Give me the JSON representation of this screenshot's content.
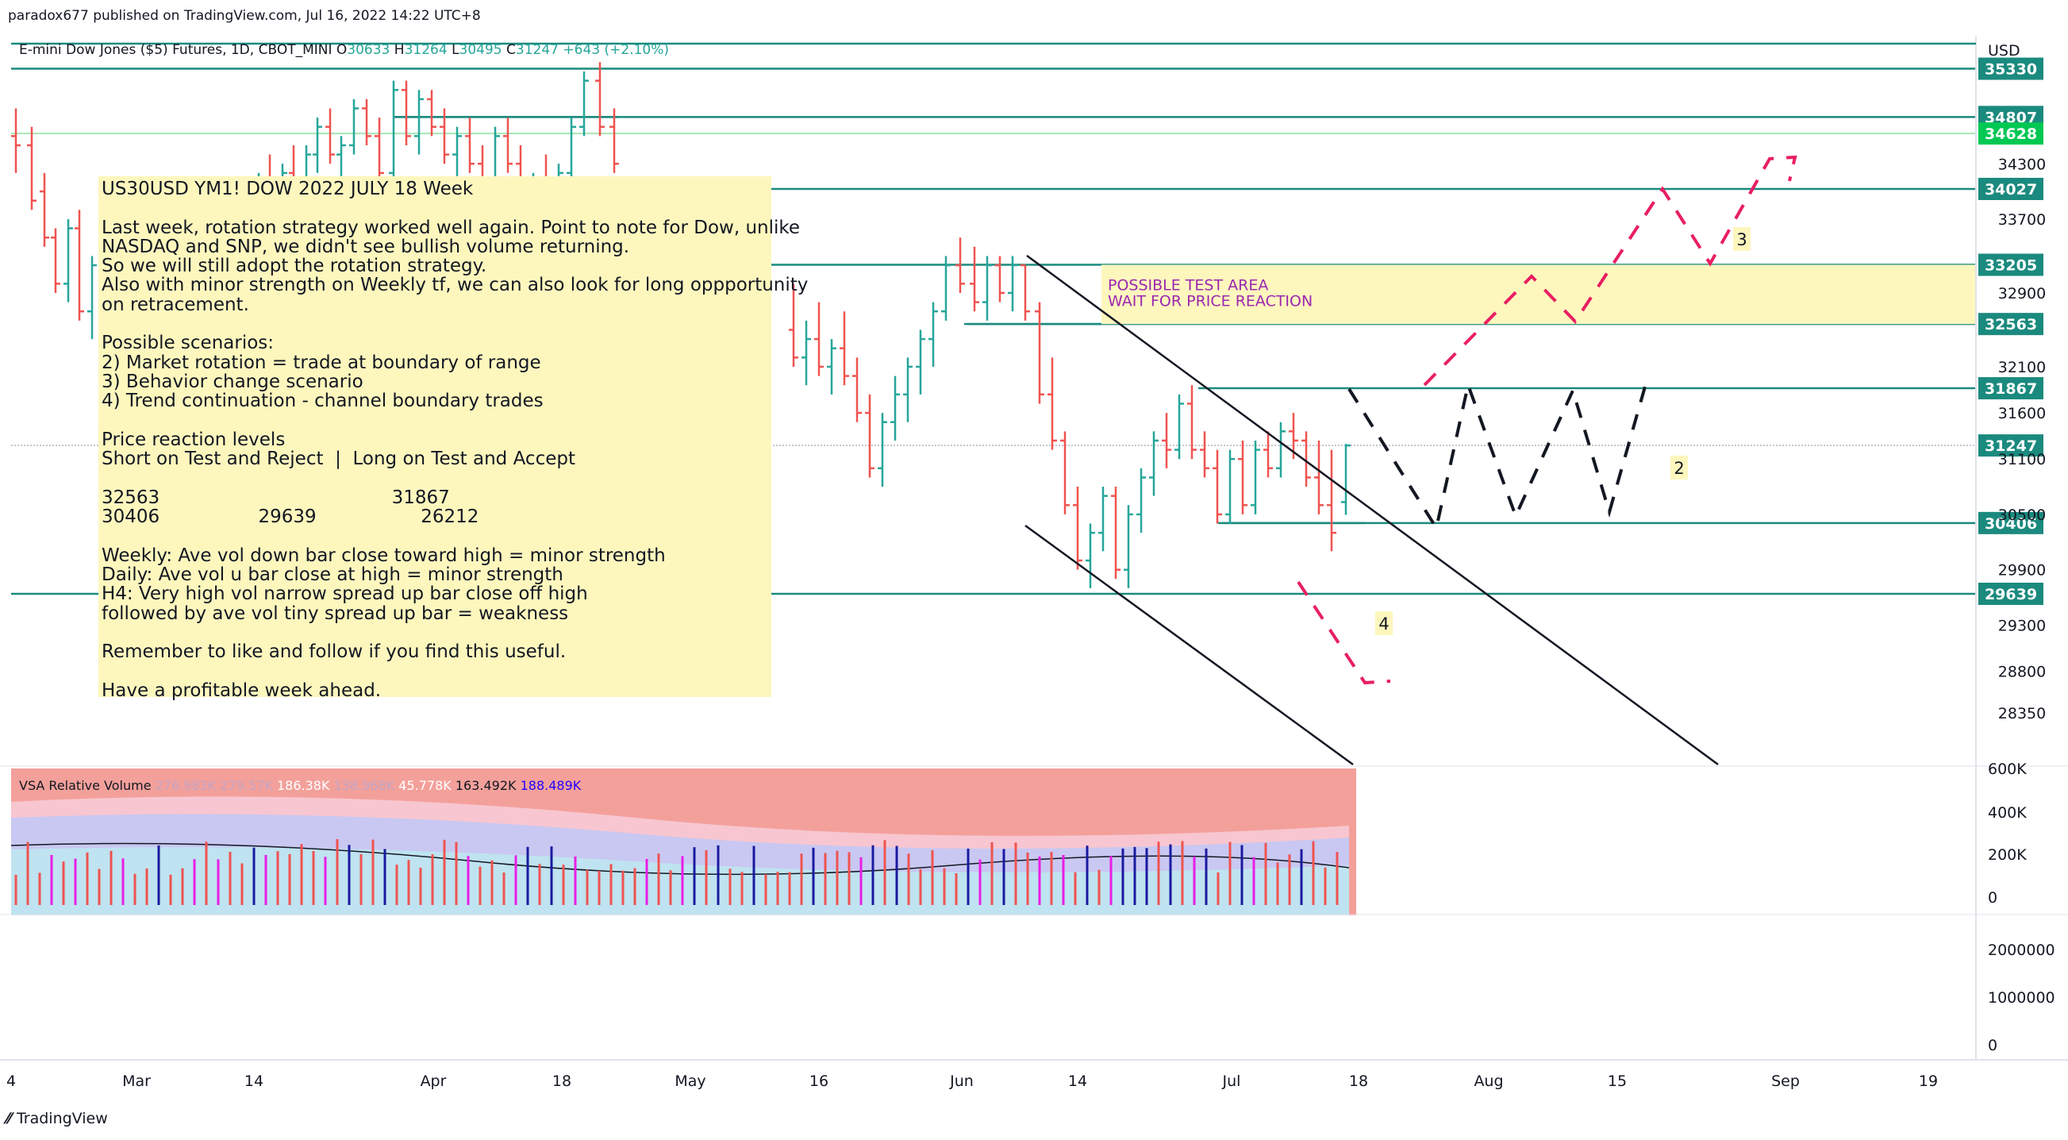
{
  "header": {
    "published": "paradox677 published on TradingView.com, Jul 16, 2022 14:22 UTC+8",
    "symbol": "E-mini Dow Jones ($5) Futures, 1D, CBOT_MINI",
    "o_label": "O",
    "o_value": "30633",
    "h_label": "H",
    "h_value": "31264",
    "l_label": "L",
    "l_value": "30495",
    "c_label": "C",
    "c_value": "31247",
    "change": "+643 (+2.10%)"
  },
  "currency": "USD",
  "note": {
    "lines": [
      "US30USD YM1! DOW 2022 JULY 18 Week",
      "",
      "Last week, rotation strategy worked well again. Point to note for Dow, unlike",
      "NASDAQ and SNP, we didn't see bullish volume returning.",
      "So we will still adopt the rotation strategy.",
      "Also with minor strength on Weekly tf, we can also look for long oppportunity",
      "on retracement.",
      "",
      "Possible scenarios:",
      "2) Market rotation = trade at boundary of range",
      "3) Behavior change scenario",
      "4) Trend continuation - channel boundary trades",
      "",
      "Price reaction levels",
      "Short on Test and Reject  |  Long on Test and Accept",
      "",
      "32563                                        31867",
      "30406                 29639                  26212",
      "",
      "Weekly: Ave vol down bar close toward high = minor strength",
      "Daily: Ave vol u bar close at high = minor strength",
      "H4: Very high vol narrow spread up bar close off high",
      "followed by ave vol tiny spread up bar = weakness",
      "",
      "Remember to like and follow if you find this useful.",
      "",
      "Have a profitable week ahead."
    ]
  },
  "test_area": {
    "line1": "POSSIBLE TEST AREA",
    "line2": "WAIT FOR PRICE REACTION"
  },
  "scenario_labels": [
    "2",
    "3",
    "4"
  ],
  "volume_panel": {
    "title": "VSA Relative Volume",
    "values": [
      "276.983K",
      "279.57K",
      "186.38K",
      "138.968K",
      "45.778K",
      "163.492K",
      "188.489K"
    ],
    "axis_ticks": [
      "600K",
      "400K",
      "200K",
      "0"
    ],
    "colors": [
      "#c4a4c4",
      "#c4a4c4",
      "#ffffff",
      "#c4a4c4",
      "#ffffff",
      "#131722",
      "#2200ff"
    ]
  },
  "lower_panel": {
    "axis_ticks": [
      "2000000",
      "1000000",
      "0"
    ]
  },
  "footer": {
    "brand": "TradingView"
  },
  "chart_data": {
    "type": "bar",
    "price_axis_ticks": [
      34300,
      33700,
      32900,
      32100,
      31600,
      31100,
      30500,
      29900,
      29300,
      28800,
      28350
    ],
    "price_level_labels": [
      {
        "label": "35330",
        "value": 35330,
        "color": "#1b8a7e"
      },
      {
        "label": "34807",
        "value": 34807,
        "color": "#1b8a7e"
      },
      {
        "label": "34628",
        "value": 34628,
        "color": "#00c853"
      },
      {
        "label": "34027",
        "value": 34027,
        "color": "#1b8a7e"
      },
      {
        "label": "33205",
        "value": 33205,
        "color": "#1b8a7e"
      },
      {
        "label": "32563",
        "value": 32563,
        "color": "#1b8a7e"
      },
      {
        "label": "31867",
        "value": 31867,
        "color": "#1b8a7e"
      },
      {
        "label": "31247",
        "value": 31247,
        "color": "#1b8a7e"
      },
      {
        "label": "30406",
        "value": 30406,
        "color": "#1b8a7e"
      },
      {
        "label": "29639",
        "value": 29639,
        "color": "#1b8a7e"
      }
    ],
    "time_axis_ticks": [
      "4",
      "Mar",
      "14",
      "Apr",
      "18",
      "May",
      "16",
      "Jun",
      "14",
      "Jul",
      "18",
      "Aug",
      "15",
      "Sep",
      "19"
    ],
    "colors": {
      "up": "#26a69a",
      "down": "#ef5350",
      "level": "#1b8a7e",
      "scenario_pink": "#e91e63"
    }
  }
}
